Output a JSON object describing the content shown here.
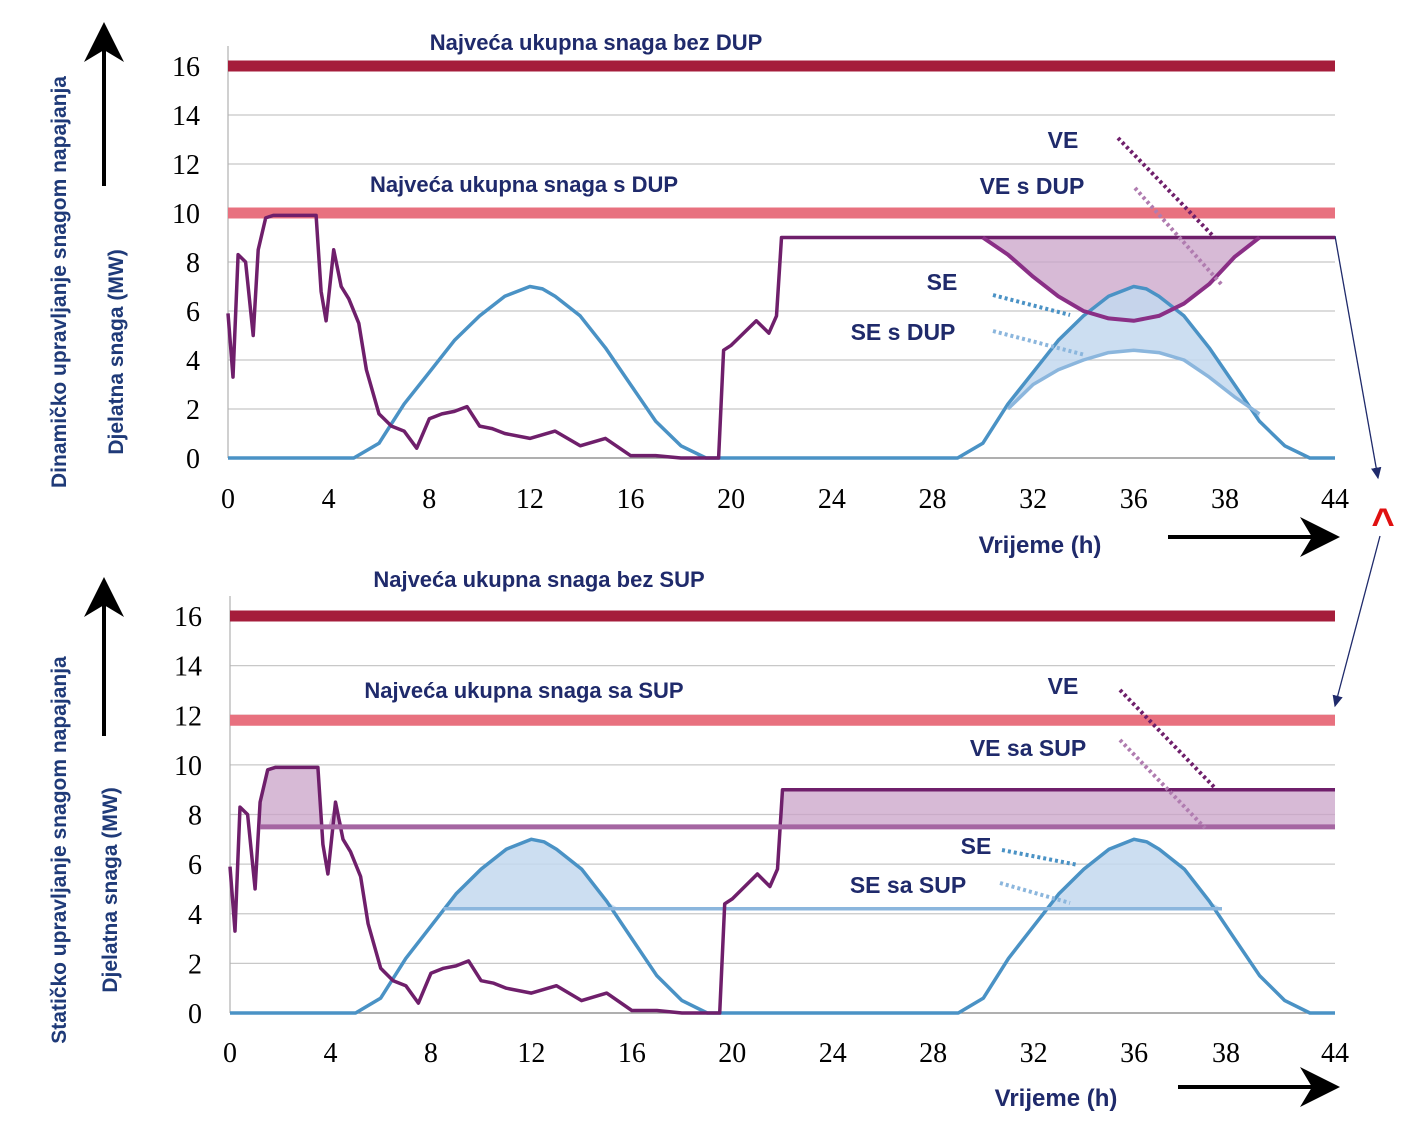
{
  "colors": {
    "ve": "#6f1f6b",
    "se": "#4a92c5",
    "max_without": "#a51d3b",
    "max_with": "#e8717f",
    "ve_fill": "#c9a3c8",
    "se_fill": "#c3d8ef",
    "label": "#1f2a6b",
    "arrow_red": "#e01010"
  },
  "side_labels": {
    "dynamic": "Dinamičko upravljanje snagom napajanja",
    "static": "Statičko upravljanje snagom napajanja"
  },
  "marker_symbol": "^",
  "chart_data": [
    {
      "type": "line",
      "ylabel": "Djelatna snaga (MW)",
      "xlabel": "Vrijeme (h)",
      "xlim": [
        0,
        44
      ],
      "ylim": [
        0,
        16
      ],
      "x_ticks": [
        "0",
        "4",
        "8",
        "12",
        "16",
        "20",
        "24",
        "28",
        "32",
        "36",
        "38",
        "44"
      ],
      "y_ticks": [
        "0",
        "2",
        "4",
        "6",
        "8",
        "10",
        "12",
        "14",
        "16"
      ],
      "grid": true,
      "hlines": [
        {
          "name": "Najveća ukupna snaga bez DUP",
          "y": 16
        },
        {
          "name": "Najveća ukupna snaga s DUP",
          "y": 10
        }
      ],
      "annotations": [
        "VE",
        "VE s DUP",
        "SE",
        "SE s DUP"
      ],
      "series": [
        {
          "name": "VE",
          "x": [
            0,
            0.2,
            0.4,
            0.7,
            1.0,
            1.2,
            1.5,
            1.8,
            2.2,
            2.6,
            3.0,
            3.5,
            3.7,
            3.9,
            4.2,
            4.5,
            4.8,
            5.2,
            5.5,
            6.0,
            6.5,
            7.0,
            7.5,
            8.0,
            8.5,
            9.0,
            9.5,
            10.0,
            10.5,
            11.0,
            12.0,
            13.0,
            14.0,
            15.0,
            16.0,
            17.0,
            18.0,
            19.0,
            19.5,
            19.7,
            20.0,
            21.0,
            21.5,
            21.8,
            22.0,
            30,
            36,
            44
          ],
          "y": [
            5.9,
            3.3,
            8.3,
            8.0,
            5.0,
            8.5,
            9.8,
            9.9,
            9.9,
            9.9,
            9.9,
            9.9,
            6.8,
            5.6,
            8.5,
            7.0,
            6.5,
            5.5,
            3.6,
            1.8,
            1.3,
            1.1,
            0.4,
            1.6,
            1.8,
            1.9,
            2.1,
            1.3,
            1.2,
            1.0,
            0.8,
            1.1,
            0.5,
            0.8,
            0.1,
            0.1,
            0.0,
            0.0,
            0.0,
            4.4,
            4.6,
            5.6,
            5.1,
            5.8,
            9.0,
            9.0,
            9.0,
            9.0
          ]
        },
        {
          "name": "VE s DUP",
          "x": [
            30,
            31,
            32,
            33,
            34,
            35,
            36,
            37,
            38,
            39,
            40,
            41
          ],
          "y": [
            9.0,
            8.3,
            7.4,
            6.6,
            6.0,
            5.7,
            5.6,
            5.8,
            6.3,
            7.1,
            8.2,
            9.0
          ]
        },
        {
          "name": "SE",
          "x": [
            0,
            5,
            6,
            7,
            8,
            9,
            10,
            11,
            12,
            12.5,
            13,
            14,
            15,
            16,
            17,
            18,
            19,
            19.5,
            29,
            30,
            31,
            32,
            33,
            34,
            35,
            36,
            36.5,
            37,
            38,
            39,
            40,
            41,
            42,
            43,
            44
          ],
          "y": [
            0,
            0,
            0.6,
            2.2,
            3.5,
            4.8,
            5.8,
            6.6,
            7.0,
            6.9,
            6.6,
            5.8,
            4.5,
            3.0,
            1.5,
            0.5,
            0,
            0,
            0,
            0.6,
            2.2,
            3.5,
            4.8,
            5.8,
            6.6,
            7.0,
            6.9,
            6.6,
            5.8,
            4.5,
            3.0,
            1.5,
            0.5,
            0,
            0
          ]
        },
        {
          "name": "SE s DUP",
          "x": [
            31,
            32,
            33,
            34,
            35,
            36,
            37,
            38,
            39,
            40,
            41
          ],
          "y": [
            2.0,
            3.0,
            3.6,
            4.0,
            4.3,
            4.4,
            4.3,
            4.0,
            3.3,
            2.5,
            1.8
          ]
        }
      ]
    },
    {
      "type": "line",
      "ylabel": "Djelatna snaga (MW)",
      "xlabel": "Vrijeme (h)",
      "xlim": [
        0,
        44
      ],
      "ylim": [
        0,
        16
      ],
      "x_ticks": [
        "0",
        "4",
        "8",
        "12",
        "16",
        "20",
        "24",
        "28",
        "32",
        "36",
        "38",
        "44"
      ],
      "y_ticks": [
        "0",
        "2",
        "4",
        "6",
        "8",
        "10",
        "12",
        "14",
        "16"
      ],
      "grid": true,
      "hlines": [
        {
          "name": "Najveća ukupna snaga bez SUP",
          "y": 16
        },
        {
          "name": "Najveća ukupna snaga sa SUP",
          "y": 11.8
        }
      ],
      "annotations": [
        "VE",
        "VE sa SUP",
        "SE",
        "SE sa SUP"
      ],
      "series": [
        {
          "name": "VE",
          "x": [
            0,
            0.2,
            0.4,
            0.7,
            1.0,
            1.2,
            1.5,
            1.8,
            2.2,
            2.6,
            3.0,
            3.5,
            3.7,
            3.9,
            4.2,
            4.5,
            4.8,
            5.2,
            5.5,
            6.0,
            6.5,
            7.0,
            7.5,
            8.0,
            8.5,
            9.0,
            9.5,
            10.0,
            10.5,
            11.0,
            12.0,
            13.0,
            14.0,
            15.0,
            16.0,
            17.0,
            18.0,
            19.0,
            19.5,
            19.7,
            20.0,
            21.0,
            21.5,
            21.8,
            22.0,
            30,
            36,
            44
          ],
          "y": [
            5.9,
            3.3,
            8.3,
            8.0,
            5.0,
            8.5,
            9.8,
            9.9,
            9.9,
            9.9,
            9.9,
            9.9,
            6.8,
            5.6,
            8.5,
            7.0,
            6.5,
            5.5,
            3.6,
            1.8,
            1.3,
            1.1,
            0.4,
            1.6,
            1.8,
            1.9,
            2.1,
            1.3,
            1.2,
            1.0,
            0.8,
            1.1,
            0.5,
            0.8,
            0.1,
            0.1,
            0.0,
            0.0,
            0.0,
            4.4,
            4.6,
            5.6,
            5.1,
            5.8,
            9.0,
            9.0,
            9.0,
            9.0
          ]
        },
        {
          "name": "VE sa SUP",
          "x": [
            1.2,
            5.2,
            22,
            44
          ],
          "y": [
            7.5,
            7.5,
            7.5,
            7.5
          ]
        },
        {
          "name": "SE",
          "x": [
            0,
            5,
            6,
            7,
            8,
            9,
            10,
            11,
            12,
            12.5,
            13,
            14,
            15,
            16,
            17,
            18,
            19,
            19.5,
            29,
            30,
            31,
            32,
            33,
            34,
            35,
            36,
            36.5,
            37,
            38,
            39,
            40,
            41,
            42,
            43,
            44
          ],
          "y": [
            0,
            0,
            0.6,
            2.2,
            3.5,
            4.8,
            5.8,
            6.6,
            7.0,
            6.9,
            6.6,
            5.8,
            4.5,
            3.0,
            1.5,
            0.5,
            0,
            0,
            0,
            0.6,
            2.2,
            3.5,
            4.8,
            5.8,
            6.6,
            7.0,
            6.9,
            6.6,
            5.8,
            4.5,
            3.0,
            1.5,
            0.5,
            0,
            0
          ]
        },
        {
          "name": "SE sa SUP",
          "x": [
            8.5,
            15.5,
            32.5,
            39.5
          ],
          "y": [
            4.2,
            4.2,
            4.2,
            4.2
          ]
        }
      ]
    }
  ]
}
